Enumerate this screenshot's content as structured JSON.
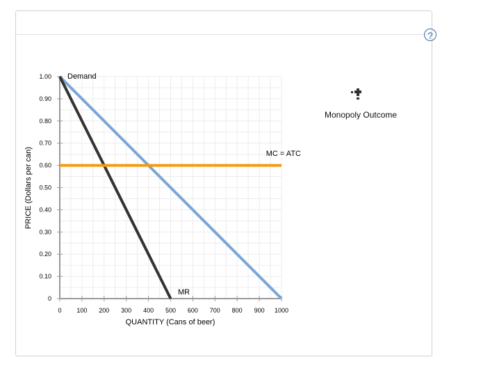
{
  "help_label": "?",
  "tool": {
    "icon": "point-drawing-tool-icon",
    "label": "Monopoly Outcome"
  },
  "chart_data": {
    "type": "line",
    "xlabel": "QUANTITY (Cans of beer)",
    "ylabel": "PRICE (Dollars per can)",
    "xlim": [
      0,
      1000
    ],
    "ylim": [
      0,
      1.0
    ],
    "xticks": [
      "0",
      "100",
      "200",
      "300",
      "400",
      "500",
      "600",
      "700",
      "800",
      "900",
      "1000"
    ],
    "yticks": [
      "0",
      "0.10",
      "0.20",
      "0.30",
      "0.40",
      "0.50",
      "0.60",
      "0.70",
      "0.80",
      "0.90",
      "1.00"
    ],
    "grid": true,
    "series": [
      {
        "name": "Demand",
        "x": [
          0,
          1000
        ],
        "y": [
          1.0,
          0
        ],
        "color": "#7ba7d4"
      },
      {
        "name": "MR",
        "x": [
          0,
          500
        ],
        "y": [
          1.0,
          0
        ],
        "color": "#333333"
      },
      {
        "name": "MC = ATC",
        "x": [
          0,
          1000
        ],
        "y": [
          0.6,
          0.6
        ],
        "color": "#f59a0c"
      }
    ]
  }
}
